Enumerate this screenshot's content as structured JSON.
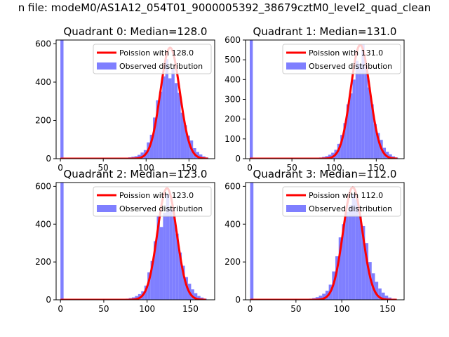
{
  "figure": {
    "suptitle": "n file: modeM0/AS1A12_054T01_9000005392_38679cztM0_level2_quad_clean"
  },
  "colors": {
    "hist": "#7f7fff",
    "fit": "#ff0000",
    "axes": "#000000",
    "background": "#ffffff"
  },
  "chart_data": [
    {
      "type": "bar",
      "title": "Quadrant 0: Median=128.0",
      "legend": [
        "Poission with 128.0",
        "Observed distribution"
      ],
      "legend_position": "top-right",
      "xlim": [
        -5,
        180
      ],
      "ylim": [
        0,
        620
      ],
      "xticks": [
        0,
        50,
        100,
        150
      ],
      "yticks": [
        0,
        200,
        400,
        600
      ],
      "bin_width": 3.6,
      "zero_bar": 620,
      "bins_x": [
        72,
        75.6,
        79.2,
        82.8,
        86.4,
        90,
        93.6,
        97.2,
        100.8,
        104.4,
        108,
        111.6,
        115.2,
        118.8,
        122.4,
        126,
        129.6,
        133.2,
        136.8,
        140.4,
        144,
        147.6,
        151.2,
        154.8,
        158.4,
        162,
        165.6,
        169.2
      ],
      "bins_y": [
        2,
        4,
        7,
        10,
        13,
        20,
        32,
        45,
        85,
        125,
        215,
        305,
        350,
        430,
        520,
        420,
        470,
        395,
        345,
        240,
        175,
        120,
        95,
        55,
        35,
        22,
        12,
        6
      ],
      "fit_mean": 128.0,
      "fit_peak": 580,
      "fit_sigma": 11.3,
      "fit_range": [
        0,
        172
      ]
    },
    {
      "type": "bar",
      "title": "Quadrant 1: Median=131.0",
      "legend": [
        "Poission with 131.0",
        "Observed distribution"
      ],
      "legend_position": "top-right",
      "xlim": [
        -5,
        183
      ],
      "ylim": [
        0,
        600
      ],
      "xticks": [
        0,
        50,
        100,
        150
      ],
      "yticks": [
        0,
        100,
        200,
        300,
        400,
        500,
        600
      ],
      "bin_width": 3.6,
      "zero_bar": 600,
      "bins_x": [
        75,
        78.6,
        82.2,
        85.8,
        89.4,
        93,
        96.6,
        100.2,
        103.8,
        107.4,
        111,
        114.6,
        118.2,
        121.8,
        125.4,
        129,
        132.6,
        136.2,
        139.8,
        143.4,
        147,
        150.6,
        154.2,
        157.8,
        161.4,
        165,
        168.6,
        172.2
      ],
      "bins_y": [
        2,
        4,
        6,
        9,
        13,
        20,
        30,
        45,
        75,
        120,
        180,
        275,
        330,
        400,
        495,
        480,
        580,
        465,
        360,
        275,
        175,
        130,
        95,
        55,
        35,
        22,
        12,
        6
      ],
      "fit_mean": 131.0,
      "fit_peak": 575,
      "fit_sigma": 11.4,
      "fit_range": [
        0,
        175
      ]
    },
    {
      "type": "bar",
      "title": "Quadrant 2: Median=123.0",
      "legend": [
        "Poission with 123.0",
        "Observed distribution"
      ],
      "legend_position": "top-right",
      "xlim": [
        -5,
        178
      ],
      "ylim": [
        0,
        620
      ],
      "xticks": [
        0,
        50,
        100,
        150
      ],
      "yticks": [
        0,
        200,
        400,
        600
      ],
      "bin_width": 3.6,
      "zero_bar": 620,
      "bins_x": [
        68,
        71.6,
        75.2,
        78.8,
        82.4,
        86,
        89.6,
        93.2,
        96.8,
        100.4,
        104,
        107.6,
        111.2,
        114.8,
        118.4,
        122,
        125.6,
        129.2,
        132.8,
        136.4,
        140,
        143.6,
        147.2,
        150.8,
        154.4,
        158,
        161.6,
        165.2
      ],
      "bins_y": [
        2,
        4,
        6,
        9,
        13,
        20,
        30,
        45,
        75,
        145,
        205,
        310,
        445,
        385,
        460,
        560,
        480,
        440,
        350,
        250,
        180,
        120,
        85,
        55,
        35,
        20,
        12,
        6
      ],
      "fit_mean": 123.0,
      "fit_peak": 590,
      "fit_sigma": 11.1,
      "fit_range": [
        0,
        168
      ]
    },
    {
      "type": "bar",
      "title": "Quadrant 3: Median=112.0",
      "legend": [
        "Poission with 112.0",
        "Observed distribution"
      ],
      "legend_position": "top-right",
      "xlim": [
        -5,
        168
      ],
      "ylim": [
        0,
        620
      ],
      "xticks": [
        0,
        50,
        100,
        150
      ],
      "yticks": [
        0,
        200,
        400,
        600
      ],
      "bin_width": 3.6,
      "zero_bar": 620,
      "bins_x": [
        57,
        60.6,
        64.2,
        67.8,
        71.4,
        75,
        78.6,
        82.2,
        85.8,
        89.4,
        93,
        96.6,
        100.2,
        103.8,
        107.4,
        111,
        114.6,
        118.2,
        121.8,
        125.4,
        129,
        132.6,
        136.2,
        139.8,
        143.4,
        147,
        150.6,
        154.2
      ],
      "bins_y": [
        2,
        4,
        6,
        9,
        14,
        22,
        32,
        48,
        80,
        150,
        230,
        330,
        400,
        465,
        500,
        555,
        530,
        440,
        390,
        300,
        200,
        140,
        95,
        60,
        38,
        22,
        12,
        6
      ],
      "fit_mean": 112.0,
      "fit_peak": 595,
      "fit_sigma": 10.6,
      "fit_range": [
        0,
        160
      ]
    }
  ]
}
